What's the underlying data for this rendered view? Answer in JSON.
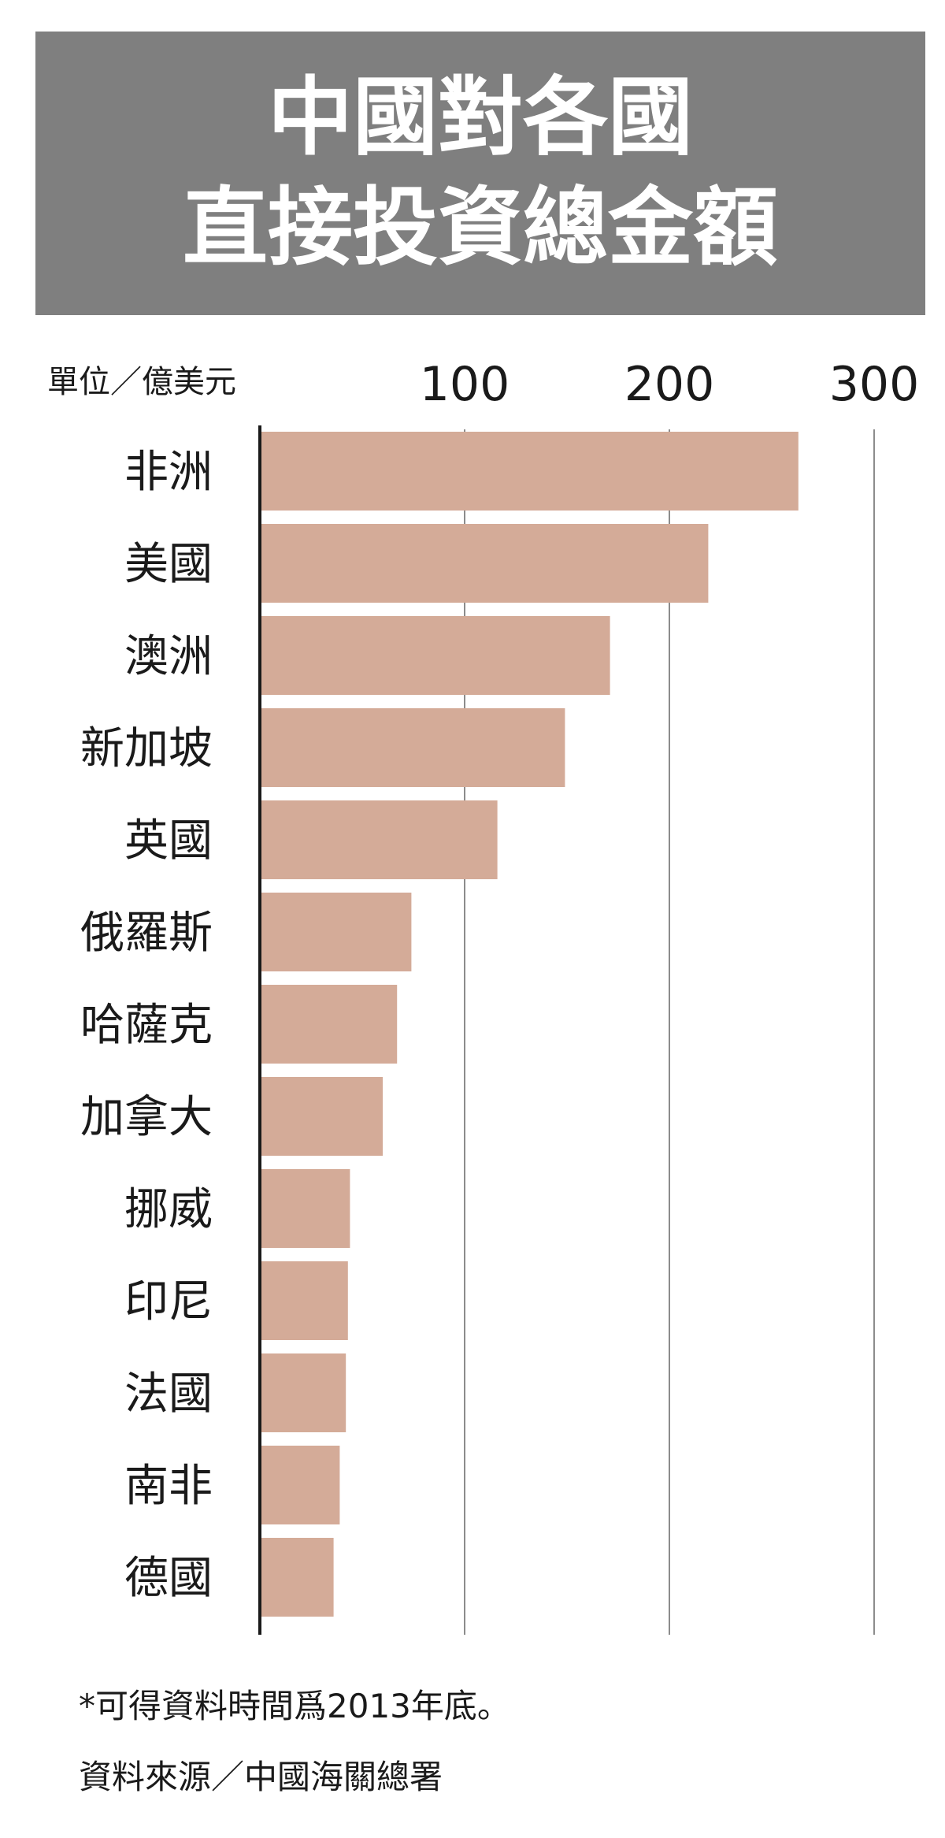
{
  "title": {
    "line1": "中國對各國",
    "line2": "直接投資總金額"
  },
  "chart_data": {
    "type": "bar",
    "orientation": "horizontal",
    "unit_label": "單位／億美元",
    "xlim": [
      0,
      300
    ],
    "xticks": [
      100,
      200,
      300
    ],
    "grid": true,
    "categories": [
      "非洲",
      "美國",
      "澳洲",
      "新加坡",
      "英國",
      "俄羅斯",
      "哈薩克",
      "加拿大",
      "挪威",
      "印尼",
      "法國",
      "南非",
      "德國"
    ],
    "values": [
      263,
      219,
      171,
      149,
      116,
      74,
      67,
      60,
      44,
      43,
      42,
      39,
      36
    ],
    "bar_color": "#d4ab98"
  },
  "footnote": "*可得資料時間爲2013年底。",
  "source": "資料來源／中國海關總署"
}
